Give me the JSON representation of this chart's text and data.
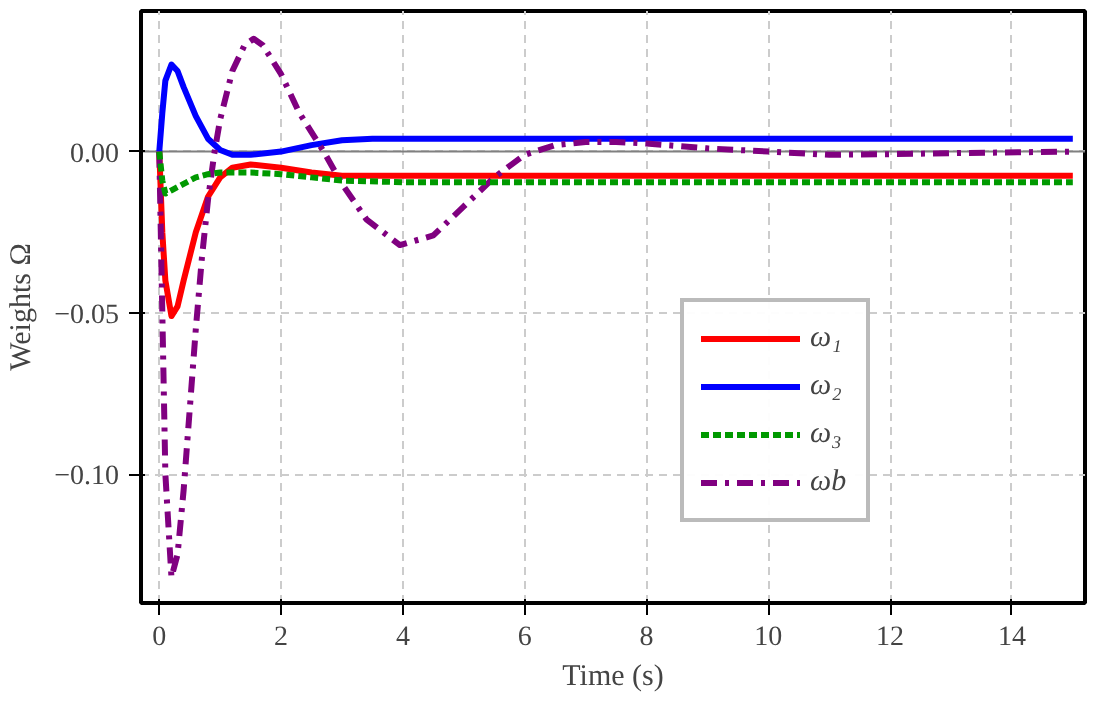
{
  "chart_data": {
    "type": "line",
    "xlabel": "Time (s)",
    "ylabel": "Weights Ω",
    "xlim": [
      -0.3,
      15.2
    ],
    "ylim": [
      -0.14,
      0.0436
    ],
    "xticks": [
      0,
      2,
      4,
      6,
      8,
      10,
      12,
      14
    ],
    "yticks": [
      {
        "value": 0,
        "label": "0.00"
      },
      {
        "value": -0.05,
        "label": "−0.05"
      },
      {
        "value": -0.1,
        "label": "−0.10"
      }
    ],
    "grid": true,
    "legend": "right",
    "ref_lines": [
      {
        "axis": "y",
        "value": 0,
        "color": "#808080"
      }
    ],
    "series": [
      {
        "name": "ω₁",
        "color": "#ff0000",
        "line_style": "solid",
        "x": [
          0,
          0.05,
          0.1,
          0.2,
          0.3,
          0.4,
          0.6,
          0.8,
          1.0,
          1.2,
          1.5,
          2,
          2.5,
          3,
          4,
          6,
          10,
          15
        ],
        "values": [
          0,
          -0.025,
          -0.04,
          -0.051,
          -0.048,
          -0.04,
          -0.025,
          -0.014,
          -0.008,
          -0.005,
          -0.004,
          -0.005,
          -0.0065,
          -0.0075,
          -0.0075,
          -0.0075,
          -0.0075,
          -0.0075
        ]
      },
      {
        "name": "ω₂",
        "color": "#0000ff",
        "line_style": "solid",
        "x": [
          0,
          0.05,
          0.1,
          0.2,
          0.3,
          0.4,
          0.6,
          0.8,
          1.0,
          1.2,
          1.5,
          2,
          2.5,
          3,
          3.5,
          4,
          6,
          10,
          15
        ],
        "values": [
          0,
          0.012,
          0.022,
          0.027,
          0.025,
          0.02,
          0.011,
          0.004,
          0.0005,
          -0.001,
          -0.001,
          0,
          0.002,
          0.0035,
          0.004,
          0.004,
          0.004,
          0.004,
          0.004
        ]
      },
      {
        "name": "ω₃",
        "color": "#009900",
        "line_style": "dashed",
        "x": [
          0,
          0.05,
          0.1,
          0.2,
          0.4,
          0.6,
          0.8,
          1.0,
          1.5,
          2,
          2.5,
          3,
          4,
          6,
          10,
          15
        ],
        "values": [
          0,
          -0.009,
          -0.013,
          -0.012,
          -0.01,
          -0.008,
          -0.007,
          -0.0065,
          -0.0065,
          -0.007,
          -0.008,
          -0.009,
          -0.0095,
          -0.0095,
          -0.0095,
          -0.0095
        ]
      },
      {
        "name": "ωb",
        "color": "#800080",
        "line_style": "dashdot",
        "x": [
          0,
          0.05,
          0.1,
          0.2,
          0.3,
          0.4,
          0.5,
          0.6,
          0.7,
          0.8,
          0.9,
          1.0,
          1.2,
          1.4,
          1.55,
          1.7,
          2.0,
          2.3,
          2.7,
          3.0,
          3.4,
          3.95,
          4.5,
          5,
          5.5,
          6,
          6.5,
          7,
          7.5,
          8,
          9,
          10,
          11,
          12,
          13,
          15
        ],
        "values": [
          0,
          -0.05,
          -0.1,
          -0.132,
          -0.125,
          -0.105,
          -0.08,
          -0.055,
          -0.033,
          -0.015,
          -0.001,
          0.01,
          0.025,
          0.033,
          0.035,
          0.033,
          0.024,
          0.012,
          0,
          -0.01,
          -0.021,
          -0.029,
          -0.026,
          -0.017,
          -0.008,
          -0.001,
          0.002,
          0.003,
          0.003,
          0.0025,
          0.001,
          0,
          -0.001,
          -0.0008,
          -0.0005,
          0
        ]
      }
    ]
  }
}
